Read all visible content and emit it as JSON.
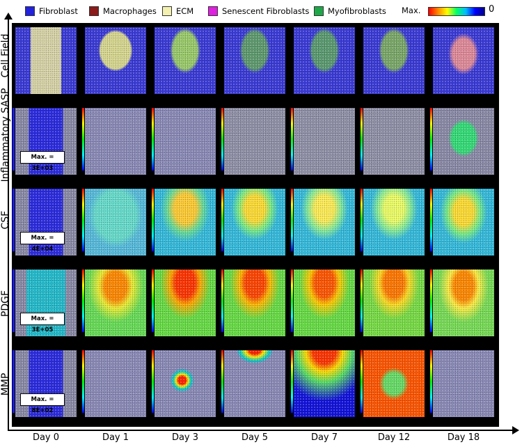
{
  "legend": {
    "items": [
      {
        "label": "Fibroblast",
        "color": "#2222dd"
      },
      {
        "label": "Macrophages",
        "color": "#8b1a1a"
      },
      {
        "label": "ECM",
        "color": "#f3f0b0"
      },
      {
        "label": "Senescent Fibroblasts",
        "color": "#e020e0"
      },
      {
        "label": "Myofibroblasts",
        "color": "#1fa84a"
      }
    ],
    "colorbar_max_label": "Max.",
    "colorbar_min_label": "0"
  },
  "rows": [
    {
      "label": "Cell Field",
      "max_text": ""
    },
    {
      "label": "Inflammatory SASP",
      "max_text": "Max. = 3E+03"
    },
    {
      "label": "CSF",
      "max_text": "Max. = 4E+04"
    },
    {
      "label": "PDGF",
      "max_text": "Max. = 3E+05"
    },
    {
      "label": "MMP",
      "max_text": "Max. = 8E+02"
    }
  ],
  "days": [
    "Day 0",
    "Day 1",
    "Day 3",
    "Day 5",
    "Day 7",
    "Day 12",
    "Day 18"
  ],
  "colors": {
    "fibroblast_bg": "#3a3ad8",
    "tissue_grey": "#8a8aa8",
    "hot": "#ff3300",
    "warm": "#ffcc00",
    "mid": "#66dd55",
    "cool": "#33bbcc"
  }
}
